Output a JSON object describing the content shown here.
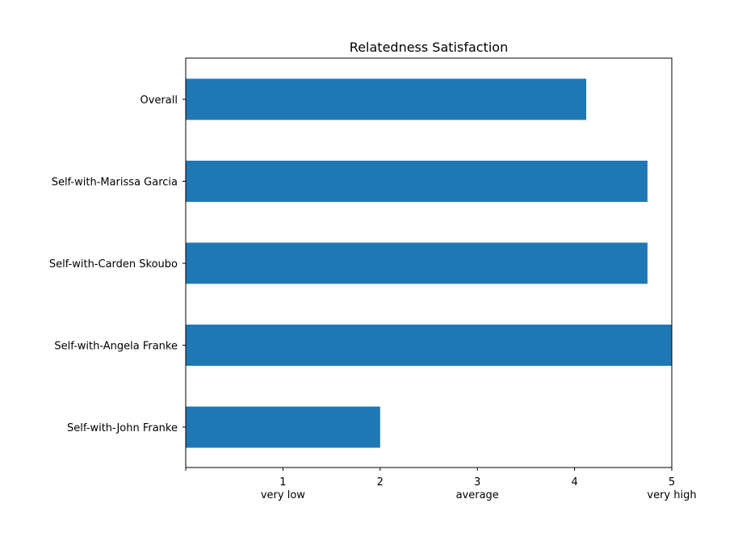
{
  "chart_data": {
    "type": "bar",
    "orientation": "horizontal",
    "title": "Relatedness Satisfaction",
    "xlabel": "",
    "ylabel": "",
    "categories": [
      "Overall",
      "Self-with-Marissa Garcia",
      "Self-with-Carden Skoubo",
      "Self-with-Angela Franke",
      "Self-with-John Franke"
    ],
    "values": [
      4.12,
      4.75,
      4.75,
      5.0,
      2.0
    ],
    "xlim": [
      0,
      5
    ],
    "xticks": [
      {
        "value": 1,
        "label": "1",
        "sublabel": "very low"
      },
      {
        "value": 2,
        "label": "2",
        "sublabel": ""
      },
      {
        "value": 3,
        "label": "3",
        "sublabel": "average"
      },
      {
        "value": 4,
        "label": "4",
        "sublabel": ""
      },
      {
        "value": 5,
        "label": "5",
        "sublabel": "very high"
      }
    ],
    "grid": false,
    "legend": "none",
    "bar_color": "#1f77b4"
  }
}
